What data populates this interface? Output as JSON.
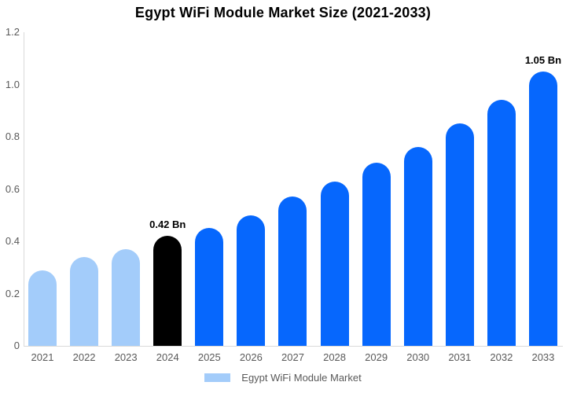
{
  "colors": {
    "bar_light_blue": "#A3CCFA",
    "bar_bright_blue": "#0667FD",
    "bar_black": "#000000",
    "axis_line": "#D9D9D9",
    "tick_text": "#595959",
    "annotation_text": "#000000",
    "background": "#FFFFFF"
  },
  "chart_data": {
    "type": "bar",
    "title": "Egypt WiFi Module Market Size (2021-2033)",
    "categories": [
      "2021",
      "2022",
      "2023",
      "2024",
      "2025",
      "2026",
      "2027",
      "2028",
      "2029",
      "2030",
      "2031",
      "2032",
      "2033"
    ],
    "values": [
      0.29,
      0.34,
      0.37,
      0.42,
      0.45,
      0.5,
      0.57,
      0.63,
      0.7,
      0.76,
      0.85,
      0.94,
      1.05
    ],
    "bar_color_keys": [
      "bar_light_blue",
      "bar_light_blue",
      "bar_light_blue",
      "bar_black",
      "bar_bright_blue",
      "bar_bright_blue",
      "bar_bright_blue",
      "bar_bright_blue",
      "bar_bright_blue",
      "bar_bright_blue",
      "bar_bright_blue",
      "bar_bright_blue",
      "bar_bright_blue"
    ],
    "annotations": [
      {
        "category": "2024",
        "label": "0.42 Bn"
      },
      {
        "category": "2033",
        "label": "1.05 Bn"
      }
    ],
    "xlabel": "",
    "ylabel": "",
    "ylim": [
      0,
      1.2
    ],
    "yticks": [
      {
        "label": "0",
        "value": 0
      },
      {
        "label": "0.2",
        "value": 0.2
      },
      {
        "label": "0.4",
        "value": 0.4
      },
      {
        "label": "0.6",
        "value": 0.6
      },
      {
        "label": "0.8",
        "value": 0.8
      },
      {
        "label": "1.0",
        "value": 1.0
      },
      {
        "label": "1.2",
        "value": 1.2
      }
    ],
    "grid": false,
    "legend": {
      "label": "Egypt WiFi Module Market",
      "position": "bottom",
      "swatch_color_key": "bar_light_blue"
    }
  }
}
